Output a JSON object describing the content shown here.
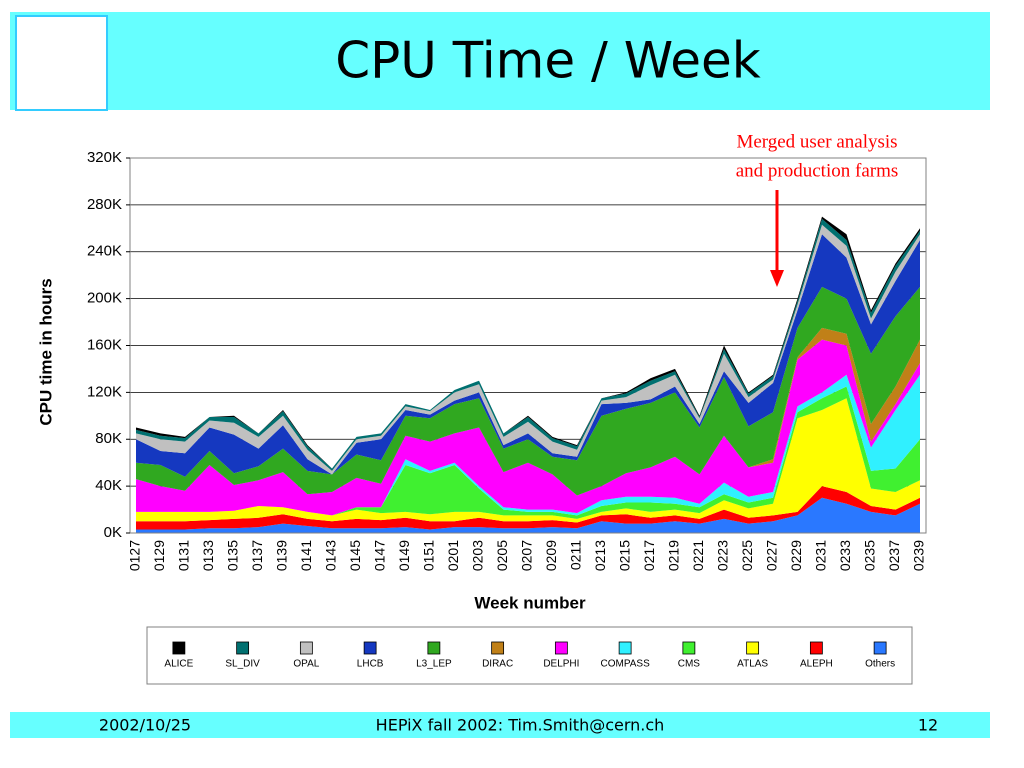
{
  "slide": {
    "title": "CPU Time / Week",
    "footer_date": "2002/10/25",
    "footer_text": "HEPiX fall 2002: Tim.Smith@cern.ch",
    "page_number": "12"
  },
  "chart_data": {
    "type": "stacked_area",
    "xlabel": "Week number",
    "ylabel": "CPU time in hours",
    "annotation": [
      "Merged user analysis",
      "and production farms"
    ],
    "categories": [
      "0127",
      "0129",
      "0131",
      "0133",
      "0135",
      "0137",
      "0139",
      "0141",
      "0143",
      "0145",
      "0147",
      "0149",
      "0151",
      "0201",
      "0203",
      "0205",
      "0207",
      "0209",
      "0211",
      "0213",
      "0215",
      "0217",
      "0219",
      "0221",
      "0223",
      "0225",
      "0227",
      "0229",
      "0231",
      "0233",
      "0235",
      "0237",
      "0239"
    ],
    "ylim": [
      0,
      320000
    ],
    "yticks": [
      {
        "value": 0,
        "label": "0K"
      },
      {
        "value": 40000,
        "label": "40K"
      },
      {
        "value": 80000,
        "label": "80K"
      },
      {
        "value": 120000,
        "label": "120K"
      },
      {
        "value": 160000,
        "label": "160K"
      },
      {
        "value": 200000,
        "label": "200K"
      },
      {
        "value": 240000,
        "label": "240K"
      },
      {
        "value": 280000,
        "label": "280K"
      },
      {
        "value": 320000,
        "label": "320K"
      }
    ],
    "grid": true,
    "series": [
      {
        "name": "ALICE",
        "color": "#000000",
        "values": [
          2000,
          2000,
          1000,
          0,
          1000,
          0,
          1000,
          1000,
          0,
          0,
          0,
          0,
          0,
          0,
          0,
          0,
          1000,
          1000,
          1000,
          0,
          1000,
          2000,
          2000,
          1000,
          3000,
          1000,
          1000,
          2000,
          2000,
          5000,
          2000,
          2000,
          2000
        ]
      },
      {
        "name": "SL_DIV",
        "color": "#007070",
        "values": [
          3000,
          3000,
          3000,
          3000,
          5000,
          3000,
          4000,
          3000,
          2000,
          2000,
          2000,
          2000,
          1000,
          2000,
          3000,
          3000,
          4000,
          3000,
          3000,
          2000,
          3000,
          4000,
          3000,
          1000,
          4000,
          3000,
          3000,
          3000,
          5000,
          5000,
          5000,
          5000,
          3000
        ]
      },
      {
        "name": "OPAL",
        "color": "#c0c0c0",
        "values": [
          5000,
          10000,
          10000,
          6000,
          10000,
          10000,
          8000,
          8000,
          3000,
          3000,
          3000,
          3000,
          3000,
          7000,
          7000,
          7000,
          10000,
          10000,
          6000,
          3000,
          5000,
          12000,
          10000,
          5000,
          15000,
          5000,
          3000,
          5000,
          8000,
          10000,
          5000,
          8000,
          5000
        ]
      },
      {
        "name": "LHCB",
        "color": "#1538c0",
        "values": [
          20000,
          12000,
          20000,
          20000,
          33000,
          15000,
          20000,
          10000,
          0,
          10000,
          18000,
          5000,
          3000,
          3000,
          5000,
          3000,
          5000,
          3000,
          3000,
          10000,
          5000,
          3000,
          5000,
          3000,
          5000,
          20000,
          25000,
          15000,
          45000,
          35000,
          25000,
          30000,
          40000
        ]
      },
      {
        "name": "L3_LEP",
        "color": "#30a820",
        "values": [
          14000,
          18000,
          12000,
          12000,
          10000,
          12000,
          20000,
          20000,
          15000,
          20000,
          20000,
          17000,
          20000,
          25000,
          25000,
          20000,
          20000,
          15000,
          30000,
          60000,
          55000,
          55000,
          55000,
          40000,
          50000,
          35000,
          40000,
          25000,
          35000,
          30000,
          60000,
          60000,
          45000
        ]
      },
      {
        "name": "DIRAC",
        "color": "#c08018",
        "values": [
          0,
          0,
          0,
          0,
          0,
          0,
          0,
          0,
          0,
          0,
          0,
          0,
          0,
          0,
          0,
          0,
          0,
          0,
          0,
          0,
          0,
          0,
          0,
          0,
          0,
          0,
          3000,
          2000,
          10000,
          10000,
          15000,
          15000,
          20000
        ]
      },
      {
        "name": "DELPHI",
        "color": "#ff00ff",
        "values": [
          28000,
          22000,
          18000,
          40000,
          22000,
          22000,
          30000,
          15000,
          20000,
          25000,
          20000,
          20000,
          25000,
          25000,
          50000,
          30000,
          40000,
          30000,
          15000,
          12000,
          20000,
          25000,
          35000,
          25000,
          40000,
          25000,
          25000,
          40000,
          45000,
          25000,
          5000,
          5000,
          10000
        ]
      },
      {
        "name": "COMPASS",
        "color": "#30f0ff",
        "values": [
          0,
          0,
          0,
          0,
          0,
          0,
          0,
          0,
          0,
          0,
          0,
          5000,
          2000,
          2000,
          2000,
          2000,
          2000,
          2000,
          2000,
          5000,
          5000,
          5000,
          5000,
          3000,
          10000,
          5000,
          5000,
          5000,
          5000,
          10000,
          20000,
          50000,
          55000
        ]
      },
      {
        "name": "CMS",
        "color": "#40f030",
        "values": [
          0,
          0,
          0,
          0,
          0,
          0,
          0,
          0,
          0,
          2000,
          5000,
          40000,
          35000,
          40000,
          20000,
          5000,
          3000,
          3000,
          3000,
          5000,
          5000,
          8000,
          5000,
          5000,
          5000,
          5000,
          5000,
          5000,
          10000,
          10000,
          15000,
          20000,
          35000
        ]
      },
      {
        "name": "ATLAS",
        "color": "#ffff00",
        "values": [
          8000,
          8000,
          8000,
          7000,
          7000,
          10000,
          6000,
          6000,
          5000,
          8000,
          6000,
          5000,
          6000,
          8000,
          5000,
          5000,
          5000,
          4000,
          3000,
          3000,
          5000,
          5000,
          5000,
          5000,
          8000,
          8000,
          10000,
          80000,
          65000,
          80000,
          15000,
          15000,
          15000
        ]
      },
      {
        "name": "ALEPH",
        "color": "#ff0000",
        "values": [
          7000,
          7000,
          7000,
          7000,
          8000,
          8000,
          8000,
          6000,
          6000,
          8000,
          7000,
          8000,
          7000,
          5000,
          8000,
          6000,
          6000,
          6000,
          5000,
          5000,
          8000,
          5000,
          5000,
          4000,
          8000,
          5000,
          5000,
          3000,
          10000,
          10000,
          5000,
          5000,
          5000
        ]
      },
      {
        "name": "Others",
        "color": "#2a78ff",
        "values": [
          3000,
          3000,
          3000,
          4000,
          4000,
          5000,
          8000,
          6000,
          4000,
          4000,
          4000,
          5000,
          3000,
          5000,
          5000,
          4000,
          4000,
          5000,
          4000,
          10000,
          8000,
          8000,
          10000,
          8000,
          12000,
          8000,
          10000,
          15000,
          30000,
          25000,
          18000,
          15000,
          25000
        ]
      }
    ]
  }
}
